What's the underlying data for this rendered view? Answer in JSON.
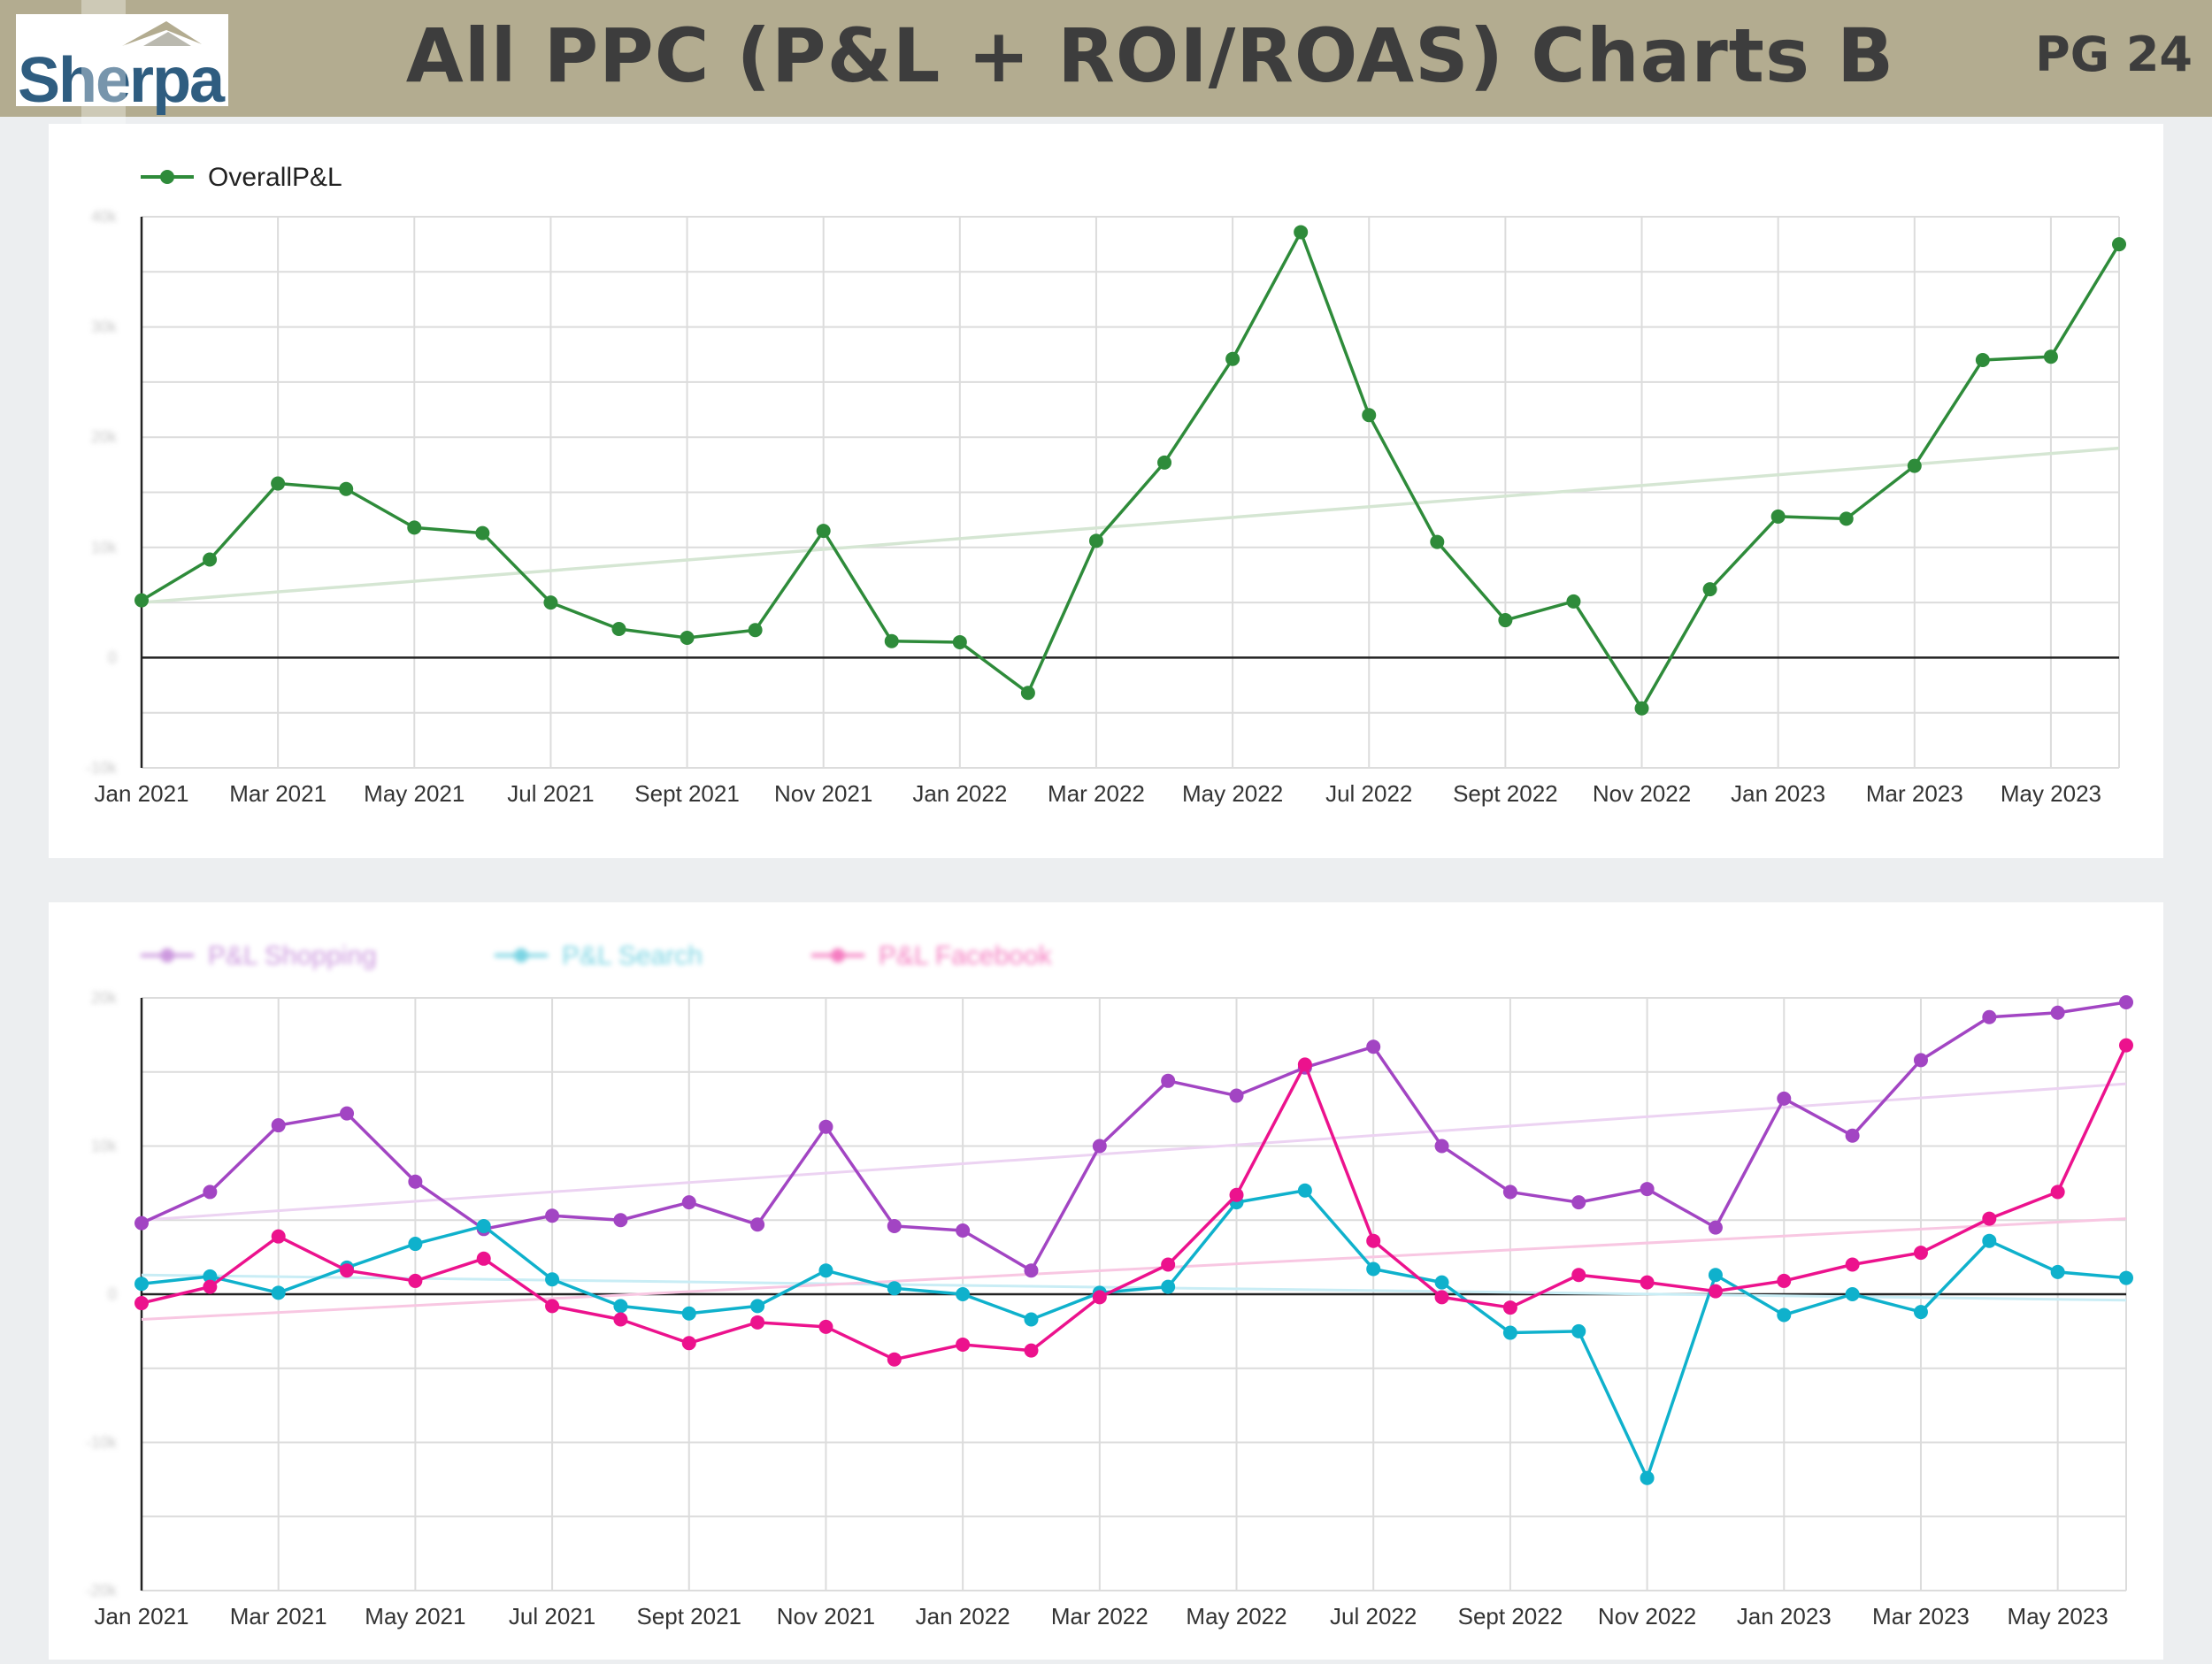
{
  "header": {
    "logo_text": "Sherpa",
    "title": "All PPC (P&L + ROI/ROAS) Charts B",
    "page": "PG 24"
  },
  "colors": {
    "header_bg": "#b3ac90",
    "overall": "#2e8b3a",
    "overall_trend": "#d5e6d3",
    "shopping": "#a245c3",
    "shopping_trend": "#ecd3f2",
    "search": "#0fb1cc",
    "search_trend": "#c9edf5",
    "facebook": "#ec128d",
    "facebook_trend": "#f8c7e2"
  },
  "chart_data": [
    {
      "type": "line",
      "x": [
        "Jan 2021",
        "Feb 2021",
        "Mar 2021",
        "Apr 2021",
        "May 2021",
        "Jun 2021",
        "Jul 2021",
        "Aug 2021",
        "Sept 2021",
        "Oct 2021",
        "Nov 2021",
        "Dec 2021",
        "Jan 2022",
        "Feb 2022",
        "Mar 2022",
        "Apr 2022",
        "May 2022",
        "Jun 2022",
        "Jul 2022",
        "Aug 2022",
        "Sept 2022",
        "Oct 2022",
        "Nov 2022",
        "Dec 2022",
        "Jan 2023",
        "Feb 2023",
        "Mar 2023",
        "Apr 2023",
        "May 2023",
        "Jun 2023"
      ],
      "x_tick_labels": [
        "Jan 2021",
        "Mar 2021",
        "May 2021",
        "Jul 2021",
        "Sept 2021",
        "Nov 2021",
        "Jan 2022",
        "Mar 2022",
        "May 2022",
        "Jul 2022",
        "Sept 2022",
        "Nov 2022",
        "Jan 2023",
        "Mar 2023",
        "May 2023"
      ],
      "series": [
        {
          "name": "OverallP&L",
          "color": "#2e8b3a",
          "values": [
            5.2,
            8.9,
            15.8,
            15.3,
            11.8,
            11.3,
            5.0,
            2.6,
            1.8,
            2.5,
            11.5,
            1.5,
            1.4,
            -3.2,
            10.6,
            17.7,
            27.1,
            38.6,
            22.0,
            10.5,
            3.4,
            5.1,
            -4.6,
            6.2,
            12.8,
            12.6,
            17.4,
            27.0,
            27.3,
            37.5
          ]
        }
      ],
      "trendline": {
        "start": 5.0,
        "end": 19.0
      },
      "y_tick_labels": [
        "-10k",
        "0",
        "10k",
        "20k",
        "30k",
        "40k"
      ],
      "ylim": [
        -10,
        40
      ],
      "grid": true,
      "legend": "top-left"
    },
    {
      "type": "line",
      "x": [
        "Jan 2021",
        "Feb 2021",
        "Mar 2021",
        "Apr 2021",
        "May 2021",
        "Jun 2021",
        "Jul 2021",
        "Aug 2021",
        "Sept 2021",
        "Oct 2021",
        "Nov 2021",
        "Dec 2021",
        "Jan 2022",
        "Feb 2022",
        "Mar 2022",
        "Apr 2022",
        "May 2022",
        "Jun 2022",
        "Jul 2022",
        "Aug 2022",
        "Sept 2022",
        "Oct 2022",
        "Nov 2022",
        "Dec 2022",
        "Jan 2023",
        "Feb 2023",
        "Mar 2023",
        "Apr 2023",
        "May 2023",
        "Jun 2023"
      ],
      "x_tick_labels": [
        "Jan 2021",
        "Mar 2021",
        "May 2021",
        "Jul 2021",
        "Sept 2021",
        "Nov 2021",
        "Jan 2022",
        "Mar 2022",
        "May 2022",
        "Jul 2022",
        "Sept 2022",
        "Nov 2022",
        "Jan 2023",
        "Mar 2023",
        "May 2023"
      ],
      "series": [
        {
          "name": "P&L Shopping",
          "color": "#a245c3",
          "values": [
            4.8,
            6.9,
            11.4,
            12.2,
            7.6,
            4.4,
            5.3,
            5.0,
            6.2,
            4.7,
            11.3,
            4.6,
            4.3,
            1.6,
            10.0,
            14.4,
            13.4,
            15.3,
            16.7,
            10.0,
            6.9,
            6.2,
            7.1,
            4.5,
            13.2,
            10.7,
            15.8,
            18.7,
            19.0,
            19.7
          ],
          "trend": {
            "start": 5.0,
            "end": 14.2
          }
        },
        {
          "name": "P&L Search",
          "color": "#0fb1cc",
          "values": [
            0.7,
            1.2,
            0.1,
            1.8,
            3.4,
            4.6,
            1.0,
            -0.8,
            -1.3,
            -0.8,
            1.6,
            0.4,
            0.0,
            -1.7,
            0.1,
            0.5,
            6.2,
            7.0,
            1.7,
            0.8,
            -2.6,
            -2.5,
            -12.4,
            1.3,
            -1.4,
            0.0,
            -1.2,
            3.6,
            1.5,
            1.1
          ],
          "trend": {
            "start": 1.3,
            "end": -0.4
          }
        },
        {
          "name": "P&L Facebook",
          "color": "#ec128d",
          "values": [
            -0.6,
            0.5,
            3.9,
            1.6,
            0.9,
            2.4,
            -0.8,
            -1.7,
            -3.3,
            -1.9,
            -2.2,
            -4.4,
            -3.4,
            -3.8,
            -0.2,
            2.0,
            6.7,
            15.5,
            3.6,
            -0.2,
            -0.9,
            1.3,
            0.8,
            0.2,
            0.9,
            2.0,
            2.8,
            5.1,
            6.9,
            16.8
          ],
          "trend": {
            "start": -1.7,
            "end": 5.1
          }
        }
      ],
      "y_tick_labels": [
        "-20k",
        "-10k",
        "0",
        "10k",
        "20k"
      ],
      "ylim": [
        -20,
        20
      ],
      "grid": true,
      "legend": "top-left"
    }
  ]
}
